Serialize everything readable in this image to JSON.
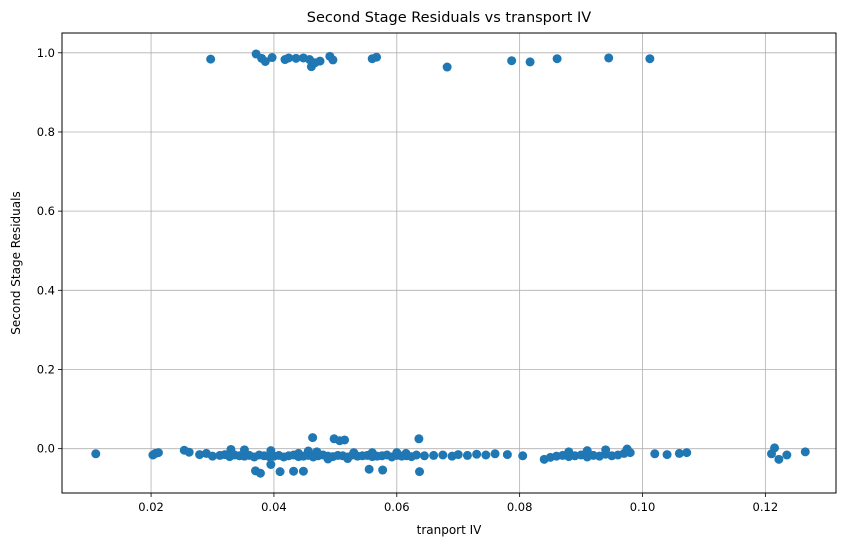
{
  "chart_data": {
    "type": "scatter",
    "title": "Second Stage Residuals vs transport IV",
    "xlabel": "tranport IV",
    "ylabel": "Second Stage Residuals",
    "xlim": [
      0.0055,
      0.1315
    ],
    "ylim": [
      -0.112,
      1.05
    ],
    "xticks": [
      0.02,
      0.04,
      0.06,
      0.08,
      0.1,
      0.12
    ],
    "xtick_labels": [
      "0.02",
      "0.04",
      "0.06",
      "0.08",
      "0.10",
      "0.12"
    ],
    "yticks": [
      0.0,
      0.2,
      0.4,
      0.6,
      0.8,
      1.0
    ],
    "ytick_labels": [
      "0.0",
      "0.2",
      "0.4",
      "0.6",
      "0.8",
      "1.0"
    ],
    "grid": true,
    "marker_color": "#1f77b4",
    "series": [
      {
        "x": [
          0.0297,
          0.0371,
          0.038,
          0.0386,
          0.0397,
          0.0418,
          0.0424,
          0.0436,
          0.0448,
          0.0458,
          0.0461,
          0.0467,
          0.0475,
          0.0491,
          0.0496,
          0.056,
          0.0567,
          0.0682,
          0.0787,
          0.0817,
          0.0861,
          0.0945,
          0.1012,
          0.011,
          0.0203,
          0.0207,
          0.0212,
          0.0254,
          0.0262,
          0.0279,
          0.029,
          0.03,
          0.0312,
          0.032,
          0.0328,
          0.0336,
          0.0344,
          0.0352,
          0.036,
          0.0368,
          0.0376,
          0.0384,
          0.0392,
          0.04,
          0.0408,
          0.0416,
          0.0424,
          0.0432,
          0.044,
          0.0448,
          0.0456,
          0.0464,
          0.0472,
          0.048,
          0.0488,
          0.0496,
          0.0504,
          0.0512,
          0.052,
          0.0528,
          0.0536,
          0.0544,
          0.0552,
          0.056,
          0.0568,
          0.0576,
          0.0584,
          0.0592,
          0.06,
          0.0608,
          0.0616,
          0.0624,
          0.0632,
          0.0645,
          0.066,
          0.0675,
          0.069,
          0.07,
          0.0715,
          0.073,
          0.0745,
          0.076,
          0.078,
          0.0805,
          0.084,
          0.085,
          0.086,
          0.087,
          0.088,
          0.089,
          0.09,
          0.091,
          0.092,
          0.093,
          0.094,
          0.095,
          0.096,
          0.097,
          0.098,
          0.102,
          0.104,
          0.106,
          0.1072,
          0.121,
          0.1215,
          0.1222,
          0.1235,
          0.1265,
          0.037,
          0.0378,
          0.0395,
          0.041,
          0.0432,
          0.0448,
          0.0463,
          0.0498,
          0.0507,
          0.0515,
          0.0555,
          0.0577,
          0.0636,
          0.0637,
          0.033,
          0.053,
          0.047,
          0.044,
          0.052,
          0.06,
          0.0395,
          0.088,
          0.091,
          0.094,
          0.0975,
          0.0352,
          0.0456,
          0.0488,
          0.056,
          0.0615
        ],
        "y": [
          0.984,
          0.997,
          0.986,
          0.978,
          0.988,
          0.983,
          0.987,
          0.986,
          0.987,
          0.983,
          0.965,
          0.975,
          0.979,
          0.991,
          0.982,
          0.985,
          0.989,
          0.964,
          0.98,
          0.977,
          0.985,
          0.987,
          0.985,
          -0.013,
          -0.016,
          -0.012,
          -0.01,
          -0.004,
          -0.009,
          -0.015,
          -0.012,
          -0.019,
          -0.017,
          -0.015,
          -0.02,
          -0.016,
          -0.018,
          -0.019,
          -0.017,
          -0.021,
          -0.016,
          -0.018,
          -0.02,
          -0.019,
          -0.017,
          -0.021,
          -0.018,
          -0.016,
          -0.02,
          -0.019,
          -0.017,
          -0.021,
          -0.018,
          -0.016,
          -0.019,
          -0.02,
          -0.017,
          -0.018,
          -0.021,
          -0.016,
          -0.019,
          -0.018,
          -0.017,
          -0.02,
          -0.019,
          -0.018,
          -0.016,
          -0.021,
          -0.017,
          -0.019,
          -0.018,
          -0.02,
          -0.016,
          -0.018,
          -0.017,
          -0.016,
          -0.019,
          -0.015,
          -0.017,
          -0.014,
          -0.016,
          -0.013,
          -0.015,
          -0.018,
          -0.027,
          -0.022,
          -0.019,
          -0.017,
          -0.02,
          -0.018,
          -0.016,
          -0.021,
          -0.017,
          -0.019,
          -0.014,
          -0.018,
          -0.016,
          -0.012,
          -0.01,
          -0.013,
          -0.015,
          -0.012,
          -0.01,
          -0.013,
          0.002,
          -0.027,
          -0.016,
          -0.008,
          -0.056,
          -0.062,
          -0.04,
          -0.058,
          -0.057,
          -0.057,
          0.028,
          0.025,
          0.02,
          0.022,
          -0.052,
          -0.054,
          0.025,
          -0.058,
          -0.002,
          -0.01,
          -0.008,
          -0.012,
          -0.025,
          -0.01,
          -0.005,
          -0.008,
          -0.005,
          -0.003,
          -0.001,
          -0.003,
          -0.006,
          -0.026,
          -0.01,
          -0.012
        ]
      }
    ]
  }
}
